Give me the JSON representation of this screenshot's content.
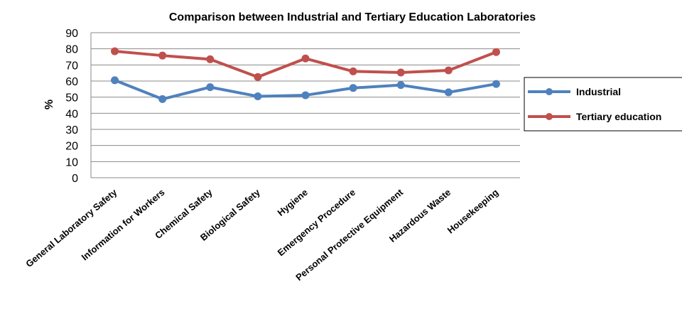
{
  "chart_data": {
    "type": "line",
    "title": "Comparison between Industrial and Tertiary Education Laboratories",
    "xlabel": "",
    "ylabel": "%",
    "ylim": [
      0,
      90
    ],
    "yticks": [
      0,
      10,
      20,
      30,
      40,
      50,
      60,
      70,
      80,
      90
    ],
    "grid": true,
    "legend_position": "right",
    "categories": [
      "General Laboratory Safety",
      "Information for Workers",
      "Chemical Safety",
      "Biological Safety",
      "Hygiene",
      "Emergency Procedure",
      "Personal Protective Equipment",
      "Hazardous Waste",
      "Housekeeping"
    ],
    "series": [
      {
        "name": "Industrial",
        "color": "#4f81bd",
        "values": [
          60.5,
          48.8,
          56.2,
          50.5,
          51.2,
          55.7,
          57.5,
          53.0,
          58.2
        ]
      },
      {
        "name": "Tertiary education",
        "color": "#c0504d",
        "values": [
          78.5,
          75.8,
          73.5,
          62.5,
          74.0,
          66.0,
          65.3,
          66.6,
          78.0
        ]
      }
    ]
  }
}
